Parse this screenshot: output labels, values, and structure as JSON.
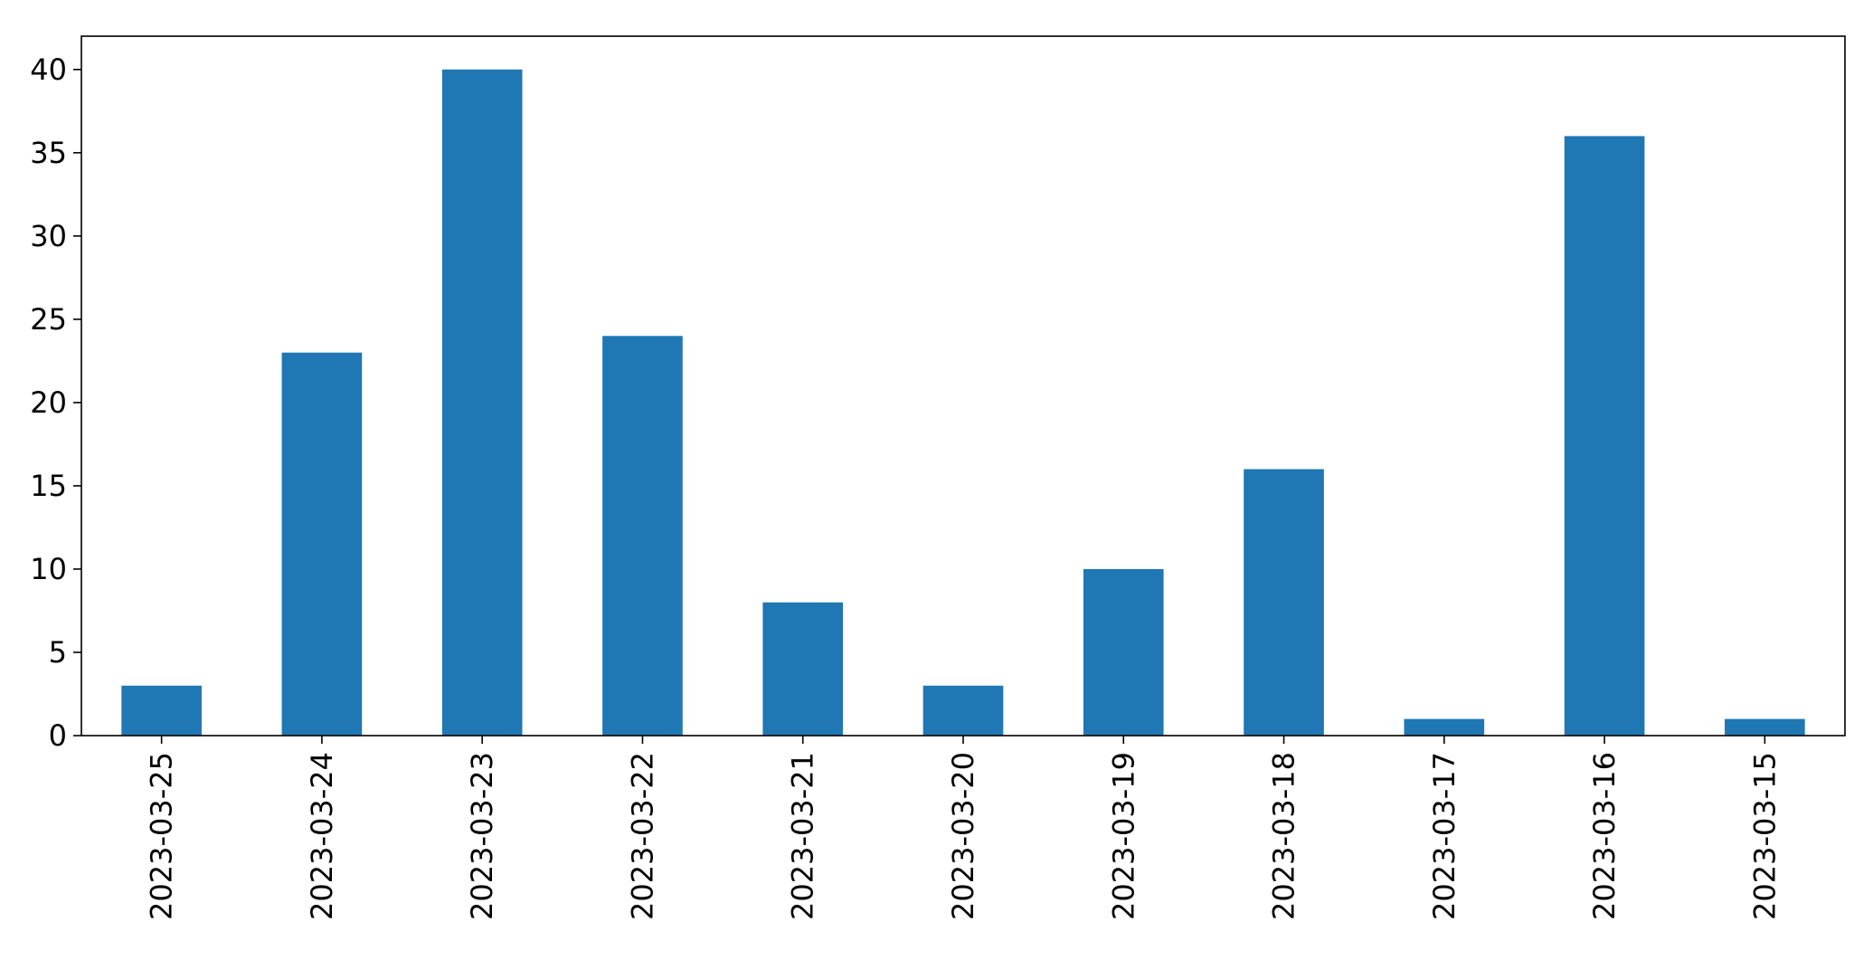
{
  "chart_data": {
    "type": "bar",
    "title": "",
    "xlabel": "",
    "ylabel": "",
    "categories": [
      "2023-03-25",
      "2023-03-24",
      "2023-03-23",
      "2023-03-22",
      "2023-03-21",
      "2023-03-20",
      "2023-03-19",
      "2023-03-18",
      "2023-03-17",
      "2023-03-16",
      "2023-03-15"
    ],
    "values": [
      3,
      23,
      40,
      24,
      8,
      3,
      10,
      16,
      1,
      36,
      1
    ],
    "ylim": [
      0,
      42
    ],
    "yticks": [
      0,
      5,
      10,
      15,
      20,
      25,
      30,
      35,
      40
    ],
    "grid": false,
    "bar_color": "#1f77b4",
    "x_tick_rotation": "vertical"
  }
}
